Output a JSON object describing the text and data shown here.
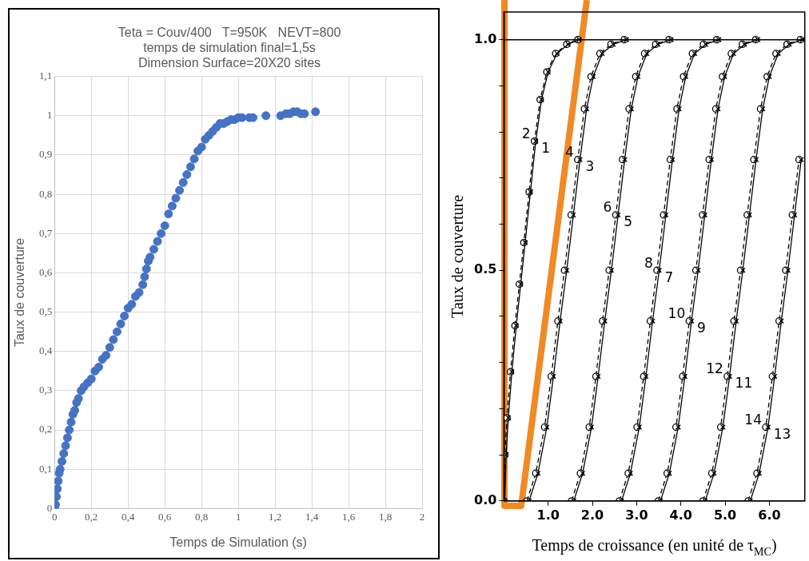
{
  "chart_data": [
    {
      "type": "scatter",
      "title": "Teta = Couv/400   T=950K   NEVT=800\ntemps de simulation final=1,5s\nDimension Surface=20X20 sites",
      "xlabel": "Temps de Simulation (s)",
      "ylabel": "Taux de couverture",
      "color": "#4472c4",
      "marker": "circle",
      "grid": true,
      "x": [
        0,
        0.005,
        0.01,
        0.015,
        0.02,
        0.025,
        0.03,
        0.04,
        0.05,
        0.06,
        0.07,
        0.08,
        0.09,
        0.1,
        0.11,
        0.12,
        0.13,
        0.145,
        0.16,
        0.18,
        0.2,
        0.22,
        0.24,
        0.26,
        0.28,
        0.3,
        0.32,
        0.34,
        0.36,
        0.38,
        0.4,
        0.42,
        0.44,
        0.46,
        0.48,
        0.49,
        0.5,
        0.51,
        0.52,
        0.54,
        0.56,
        0.58,
        0.6,
        0.62,
        0.64,
        0.66,
        0.68,
        0.7,
        0.72,
        0.74,
        0.76,
        0.78,
        0.8,
        0.82,
        0.84,
        0.86,
        0.88,
        0.9,
        0.92,
        0.94,
        0.96,
        0.98,
        1.0,
        1.02,
        1.06,
        1.08,
        1.15,
        1.23,
        1.26,
        1.28,
        1.3,
        1.32,
        1.34,
        1.36,
        1.42
      ],
      "values": [
        0,
        0.01,
        0.03,
        0.05,
        0.07,
        0.09,
        0.1,
        0.12,
        0.14,
        0.16,
        0.18,
        0.2,
        0.22,
        0.24,
        0.25,
        0.27,
        0.28,
        0.3,
        0.31,
        0.32,
        0.33,
        0.35,
        0.36,
        0.38,
        0.39,
        0.41,
        0.43,
        0.45,
        0.47,
        0.49,
        0.51,
        0.52,
        0.54,
        0.55,
        0.57,
        0.59,
        0.61,
        0.63,
        0.64,
        0.66,
        0.68,
        0.7,
        0.72,
        0.75,
        0.77,
        0.79,
        0.81,
        0.83,
        0.85,
        0.87,
        0.89,
        0.91,
        0.92,
        0.94,
        0.95,
        0.96,
        0.97,
        0.98,
        0.98,
        0.985,
        0.99,
        0.99,
        0.995,
        0.995,
        0.995,
        0.995,
        1.0,
        1.0,
        1.005,
        1.005,
        1.01,
        1.01,
        1.005,
        1.005,
        1.01
      ],
      "xlim": [
        0,
        2
      ],
      "xticks": [
        0,
        {
          "value": 0.2,
          "label": "0,2"
        },
        {
          "value": 0.4,
          "label": "0,4"
        },
        {
          "value": 0.6,
          "label": "0,6"
        },
        {
          "value": 0.8,
          "label": "0,8"
        },
        1,
        {
          "value": 1.2,
          "label": "1,2"
        },
        {
          "value": 1.4,
          "label": "1,4"
        },
        {
          "value": 1.6,
          "label": "1,6"
        },
        {
          "value": 1.8,
          "label": "1,8"
        },
        2
      ],
      "ylim": [
        0,
        1.1
      ],
      "yticks": [
        0,
        {
          "value": 0.1,
          "label": "0,1"
        },
        {
          "value": 0.2,
          "label": "0,2"
        },
        {
          "value": 0.3,
          "label": "0,3"
        },
        {
          "value": 0.4,
          "label": "0,4"
        },
        {
          "value": 0.5,
          "label": "0,5"
        },
        {
          "value": 0.6,
          "label": "0,6"
        },
        {
          "value": 0.7,
          "label": "0,7"
        },
        {
          "value": 0.8,
          "label": "0,8"
        },
        {
          "value": 0.9,
          "label": "0,9"
        },
        1,
        {
          "value": 1.1,
          "label": "1,1"
        }
      ]
    },
    {
      "type": "line",
      "xlabel": "Temps de croissance (en unité de τ$_{MC}$)",
      "ylabel": "Taux de couverture",
      "grid": false,
      "xlim": [
        0,
        6.8
      ],
      "xticks": [
        {
          "value": 1,
          "label": "1.0"
        },
        {
          "value": 2,
          "label": "2.0"
        },
        {
          "value": 3,
          "label": "3.0"
        },
        {
          "value": 4,
          "label": "4.0"
        },
        {
          "value": 5,
          "label": "5.0"
        },
        {
          "value": 6,
          "label": "6.0"
        }
      ],
      "ylim": [
        0,
        1.06
      ],
      "yticks": [
        {
          "value": 0,
          "label": "0.0"
        },
        {
          "value": 0.1,
          "label": null
        },
        {
          "value": 0.2,
          "label": null
        },
        {
          "value": 0.3,
          "label": null
        },
        {
          "value": 0.4,
          "label": null
        },
        {
          "value": 0.5,
          "label": "0.5"
        },
        {
          "value": 0.6,
          "label": null
        },
        {
          "value": 0.7,
          "label": null
        },
        {
          "value": 0.8,
          "label": null
        },
        {
          "value": 0.9,
          "label": null
        },
        {
          "value": 1,
          "label": "1.0"
        }
      ],
      "ref_lines": [
        {
          "axis": "y",
          "value": 1,
          "color": "#000000"
        }
      ],
      "series": [
        {
          "name": "1",
          "color": "#000000",
          "marker": "cross",
          "line_style": "solid",
          "x": [
            0.02,
            0.05,
            0.1,
            0.18,
            0.28,
            0.38,
            0.48,
            0.6,
            0.72,
            0.85,
            1.0,
            1.2,
            1.45,
            1.7
          ],
          "values": [
            0,
            0.1,
            0.18,
            0.28,
            0.38,
            0.47,
            0.56,
            0.67,
            0.78,
            0.87,
            0.93,
            0.97,
            0.99,
            1.0
          ]
        },
        {
          "name": "2",
          "color": "#000000",
          "marker": "circle",
          "line_style": "dashed",
          "x": [
            0,
            0.02,
            0.07,
            0.15,
            0.25,
            0.35,
            0.45,
            0.57,
            0.69,
            0.82,
            0.97,
            1.17,
            1.42,
            1.67
          ],
          "values": [
            0,
            0.1,
            0.18,
            0.28,
            0.38,
            0.47,
            0.56,
            0.67,
            0.78,
            0.87,
            0.93,
            0.97,
            0.99,
            1.0
          ]
        },
        {
          "name": "3",
          "color": "#000000",
          "marker": "cross",
          "line_style": "solid",
          "x": [
            0.57,
            0.77,
            0.97,
            1.12,
            1.27,
            1.42,
            1.57,
            1.72,
            1.87,
            2.02,
            2.22,
            2.47,
            2.77
          ],
          "values": [
            0,
            0.06,
            0.16,
            0.27,
            0.39,
            0.5,
            0.62,
            0.74,
            0.85,
            0.92,
            0.97,
            0.99,
            1.0
          ]
        },
        {
          "name": "4",
          "color": "#000000",
          "marker": "circle",
          "line_style": "dashed",
          "x": [
            0.52,
            0.72,
            0.92,
            1.07,
            1.22,
            1.37,
            1.52,
            1.67,
            1.82,
            1.97,
            2.17,
            2.42,
            2.72
          ],
          "values": [
            0,
            0.06,
            0.16,
            0.27,
            0.39,
            0.5,
            0.62,
            0.74,
            0.85,
            0.92,
            0.97,
            0.99,
            1.0
          ]
        },
        {
          "name": "5",
          "color": "#000000",
          "marker": "cross",
          "line_style": "solid",
          "x": [
            1.58,
            1.78,
            1.98,
            2.13,
            2.28,
            2.43,
            2.58,
            2.73,
            2.88,
            3.03,
            3.23,
            3.48,
            3.78
          ],
          "values": [
            0,
            0.06,
            0.16,
            0.27,
            0.39,
            0.5,
            0.62,
            0.74,
            0.85,
            0.92,
            0.97,
            0.99,
            1.0
          ]
        },
        {
          "name": "6",
          "color": "#000000",
          "marker": "circle",
          "line_style": "dashed",
          "x": [
            1.53,
            1.73,
            1.93,
            2.08,
            2.23,
            2.38,
            2.53,
            2.68,
            2.83,
            2.98,
            3.18,
            3.43,
            3.73
          ],
          "values": [
            0,
            0.06,
            0.16,
            0.27,
            0.39,
            0.5,
            0.62,
            0.74,
            0.85,
            0.92,
            0.97,
            0.99,
            1.0
          ]
        },
        {
          "name": "7",
          "color": "#000000",
          "marker": "cross",
          "line_style": "solid",
          "x": [
            2.66,
            2.86,
            3.06,
            3.21,
            3.36,
            3.51,
            3.66,
            3.81,
            3.96,
            4.11,
            4.31,
            4.56,
            4.86
          ],
          "values": [
            0,
            0.06,
            0.16,
            0.27,
            0.39,
            0.5,
            0.62,
            0.74,
            0.85,
            0.92,
            0.97,
            0.99,
            1.0
          ]
        },
        {
          "name": "8",
          "color": "#000000",
          "marker": "circle",
          "line_style": "dashed",
          "x": [
            2.61,
            2.81,
            3.01,
            3.16,
            3.31,
            3.46,
            3.61,
            3.76,
            3.91,
            4.06,
            4.26,
            4.51,
            4.81
          ],
          "values": [
            0,
            0.06,
            0.16,
            0.27,
            0.39,
            0.5,
            0.62,
            0.74,
            0.85,
            0.92,
            0.97,
            0.99,
            1.0
          ]
        },
        {
          "name": "9",
          "color": "#000000",
          "marker": "cross",
          "line_style": "solid",
          "x": [
            3.54,
            3.74,
            3.94,
            4.09,
            4.24,
            4.39,
            4.54,
            4.69,
            4.84,
            4.99,
            5.19,
            5.44,
            5.74
          ],
          "values": [
            0,
            0.06,
            0.16,
            0.27,
            0.39,
            0.5,
            0.62,
            0.74,
            0.85,
            0.92,
            0.97,
            0.99,
            1.0
          ]
        },
        {
          "name": "10",
          "color": "#000000",
          "marker": "circle",
          "line_style": "dashed",
          "x": [
            3.49,
            3.69,
            3.89,
            4.04,
            4.19,
            4.34,
            4.49,
            4.64,
            4.79,
            4.94,
            5.14,
            5.39,
            5.69
          ],
          "values": [
            0,
            0.06,
            0.16,
            0.27,
            0.39,
            0.5,
            0.62,
            0.74,
            0.85,
            0.92,
            0.97,
            0.99,
            1.0
          ]
        },
        {
          "name": "11",
          "color": "#000000",
          "marker": "cross",
          "line_style": "solid",
          "x": [
            4.55,
            4.75,
            4.95,
            5.1,
            5.25,
            5.4,
            5.55,
            5.7,
            5.85,
            6.0,
            6.2,
            6.45,
            6.75
          ],
          "values": [
            0,
            0.06,
            0.16,
            0.27,
            0.39,
            0.5,
            0.62,
            0.74,
            0.85,
            0.92,
            0.97,
            0.99,
            1.0
          ]
        },
        {
          "name": "12",
          "color": "#000000",
          "marker": "circle",
          "line_style": "dashed",
          "x": [
            4.5,
            4.7,
            4.9,
            5.05,
            5.2,
            5.35,
            5.5,
            5.65,
            5.8,
            5.95,
            6.15,
            6.4,
            6.7
          ],
          "values": [
            0,
            0.06,
            0.16,
            0.27,
            0.39,
            0.5,
            0.62,
            0.74,
            0.85,
            0.92,
            0.97,
            0.99,
            1.0
          ]
        },
        {
          "name": "13",
          "color": "#000000",
          "marker": "cross",
          "line_style": "solid",
          "x": [
            5.57,
            5.77,
            5.97,
            6.12,
            6.27,
            6.42,
            6.57,
            6.72
          ],
          "values": [
            0,
            0.06,
            0.16,
            0.27,
            0.39,
            0.5,
            0.62,
            0.74
          ]
        },
        {
          "name": "14",
          "color": "#000000",
          "marker": "circle",
          "line_style": "dashed",
          "x": [
            5.52,
            5.72,
            5.92,
            6.07,
            6.22,
            6.37,
            6.52,
            6.67
          ],
          "values": [
            0,
            0.06,
            0.16,
            0.27,
            0.39,
            0.5,
            0.62,
            0.74
          ]
        }
      ]
    }
  ]
}
